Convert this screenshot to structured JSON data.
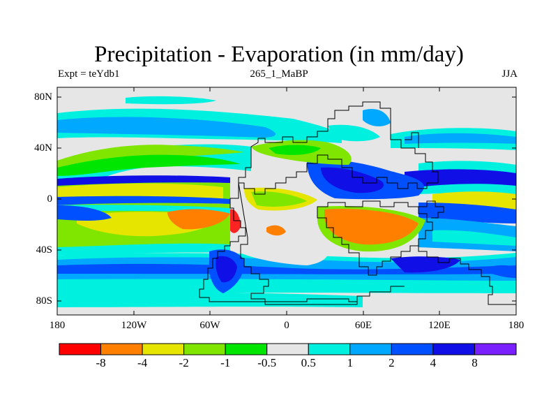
{
  "title": "Precipitation - Evaporation (in mm/day)",
  "left_string": "Expt = teYdb1",
  "center_string": "265_1_MaBP",
  "right_string": "JJA",
  "lat_labels": [
    "80N",
    "40N",
    "0",
    "40S",
    "80S"
  ],
  "lon_labels": [
    "180",
    "120W",
    "60W",
    "0",
    "60E",
    "120E",
    "180"
  ],
  "colorbar": {
    "colors": [
      "#ff0000",
      "#ff7f00",
      "#e5e500",
      "#80e600",
      "#00e600",
      "#e6e6e6",
      "#00f0e0",
      "#00a8ff",
      "#0050ff",
      "#1010e6",
      "#7a20ff"
    ],
    "labels": [
      "-8",
      "-4",
      "-2",
      "-1",
      "-0.5",
      "0.5",
      "1",
      "2",
      "4",
      "8"
    ]
  }
}
